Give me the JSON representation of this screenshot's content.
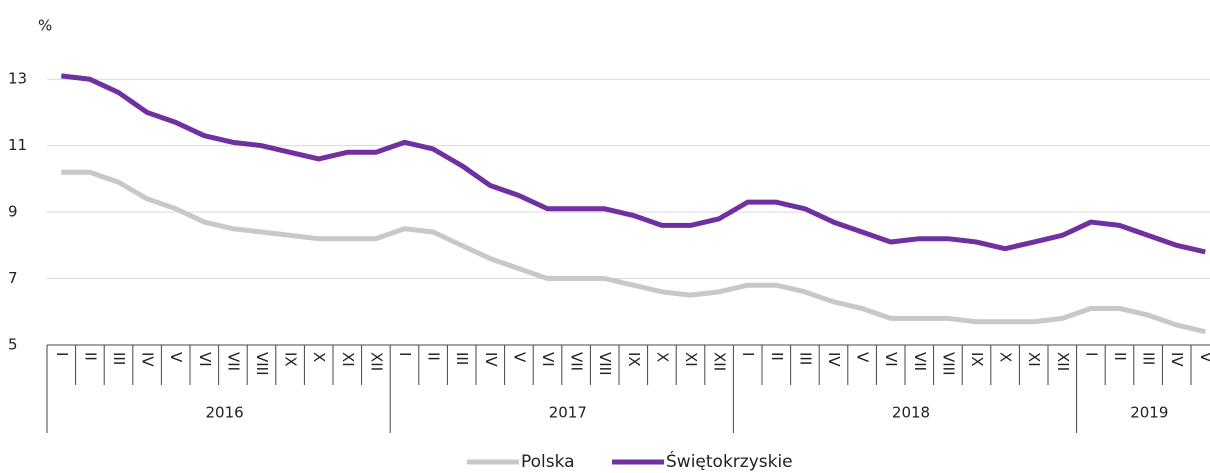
{
  "chart_data": {
    "type": "line",
    "y_label": "%",
    "year_groups": [
      {
        "label": "2016",
        "months": [
          "I",
          "II",
          "III",
          "IV",
          "V",
          "VI",
          "VII",
          "VIII",
          "IX",
          "X",
          "XI",
          "XII"
        ]
      },
      {
        "label": "2017",
        "months": [
          "I",
          "II",
          "III",
          "IV",
          "V",
          "VI",
          "VII",
          "VIII",
          "IX",
          "X",
          "XI",
          "XII"
        ]
      },
      {
        "label": "2018",
        "months": [
          "I",
          "II",
          "III",
          "IV",
          "V",
          "VI",
          "VII",
          "VIII",
          "IX",
          "X",
          "XI",
          "XII"
        ]
      },
      {
        "label": "2019",
        "months": [
          "I",
          "II",
          "III",
          "IV",
          "V"
        ]
      }
    ],
    "series": [
      {
        "name": "Polska",
        "color": "#c8c8c8",
        "values": [
          10.2,
          10.2,
          9.9,
          9.4,
          9.1,
          8.7,
          8.5,
          8.4,
          8.3,
          8.2,
          8.2,
          8.2,
          8.5,
          8.4,
          8.0,
          7.6,
          7.3,
          7.0,
          7.0,
          7.0,
          6.8,
          6.6,
          6.5,
          6.6,
          6.8,
          6.8,
          6.6,
          6.3,
          6.1,
          5.8,
          5.8,
          5.8,
          5.7,
          5.7,
          5.7,
          5.8,
          6.1,
          6.1,
          5.9,
          5.6,
          5.4
        ]
      },
      {
        "name": "Świętokrzyskie",
        "color": "#7030a0",
        "values": [
          13.1,
          13.0,
          12.6,
          12.0,
          11.7,
          11.3,
          11.1,
          11.0,
          10.8,
          10.6,
          10.8,
          10.8,
          11.1,
          10.9,
          10.4,
          9.8,
          9.5,
          9.1,
          9.1,
          9.1,
          8.9,
          8.6,
          8.6,
          8.8,
          9.3,
          9.3,
          9.1,
          8.7,
          8.4,
          8.1,
          8.2,
          8.2,
          8.1,
          7.9,
          8.1,
          8.3,
          8.7,
          8.6,
          8.3,
          8.0,
          7.8
        ]
      }
    ],
    "ylim": [
      5,
      14
    ],
    "yticks": [
      5,
      7,
      9,
      11,
      13
    ],
    "grid": true,
    "legend": "bottom"
  }
}
